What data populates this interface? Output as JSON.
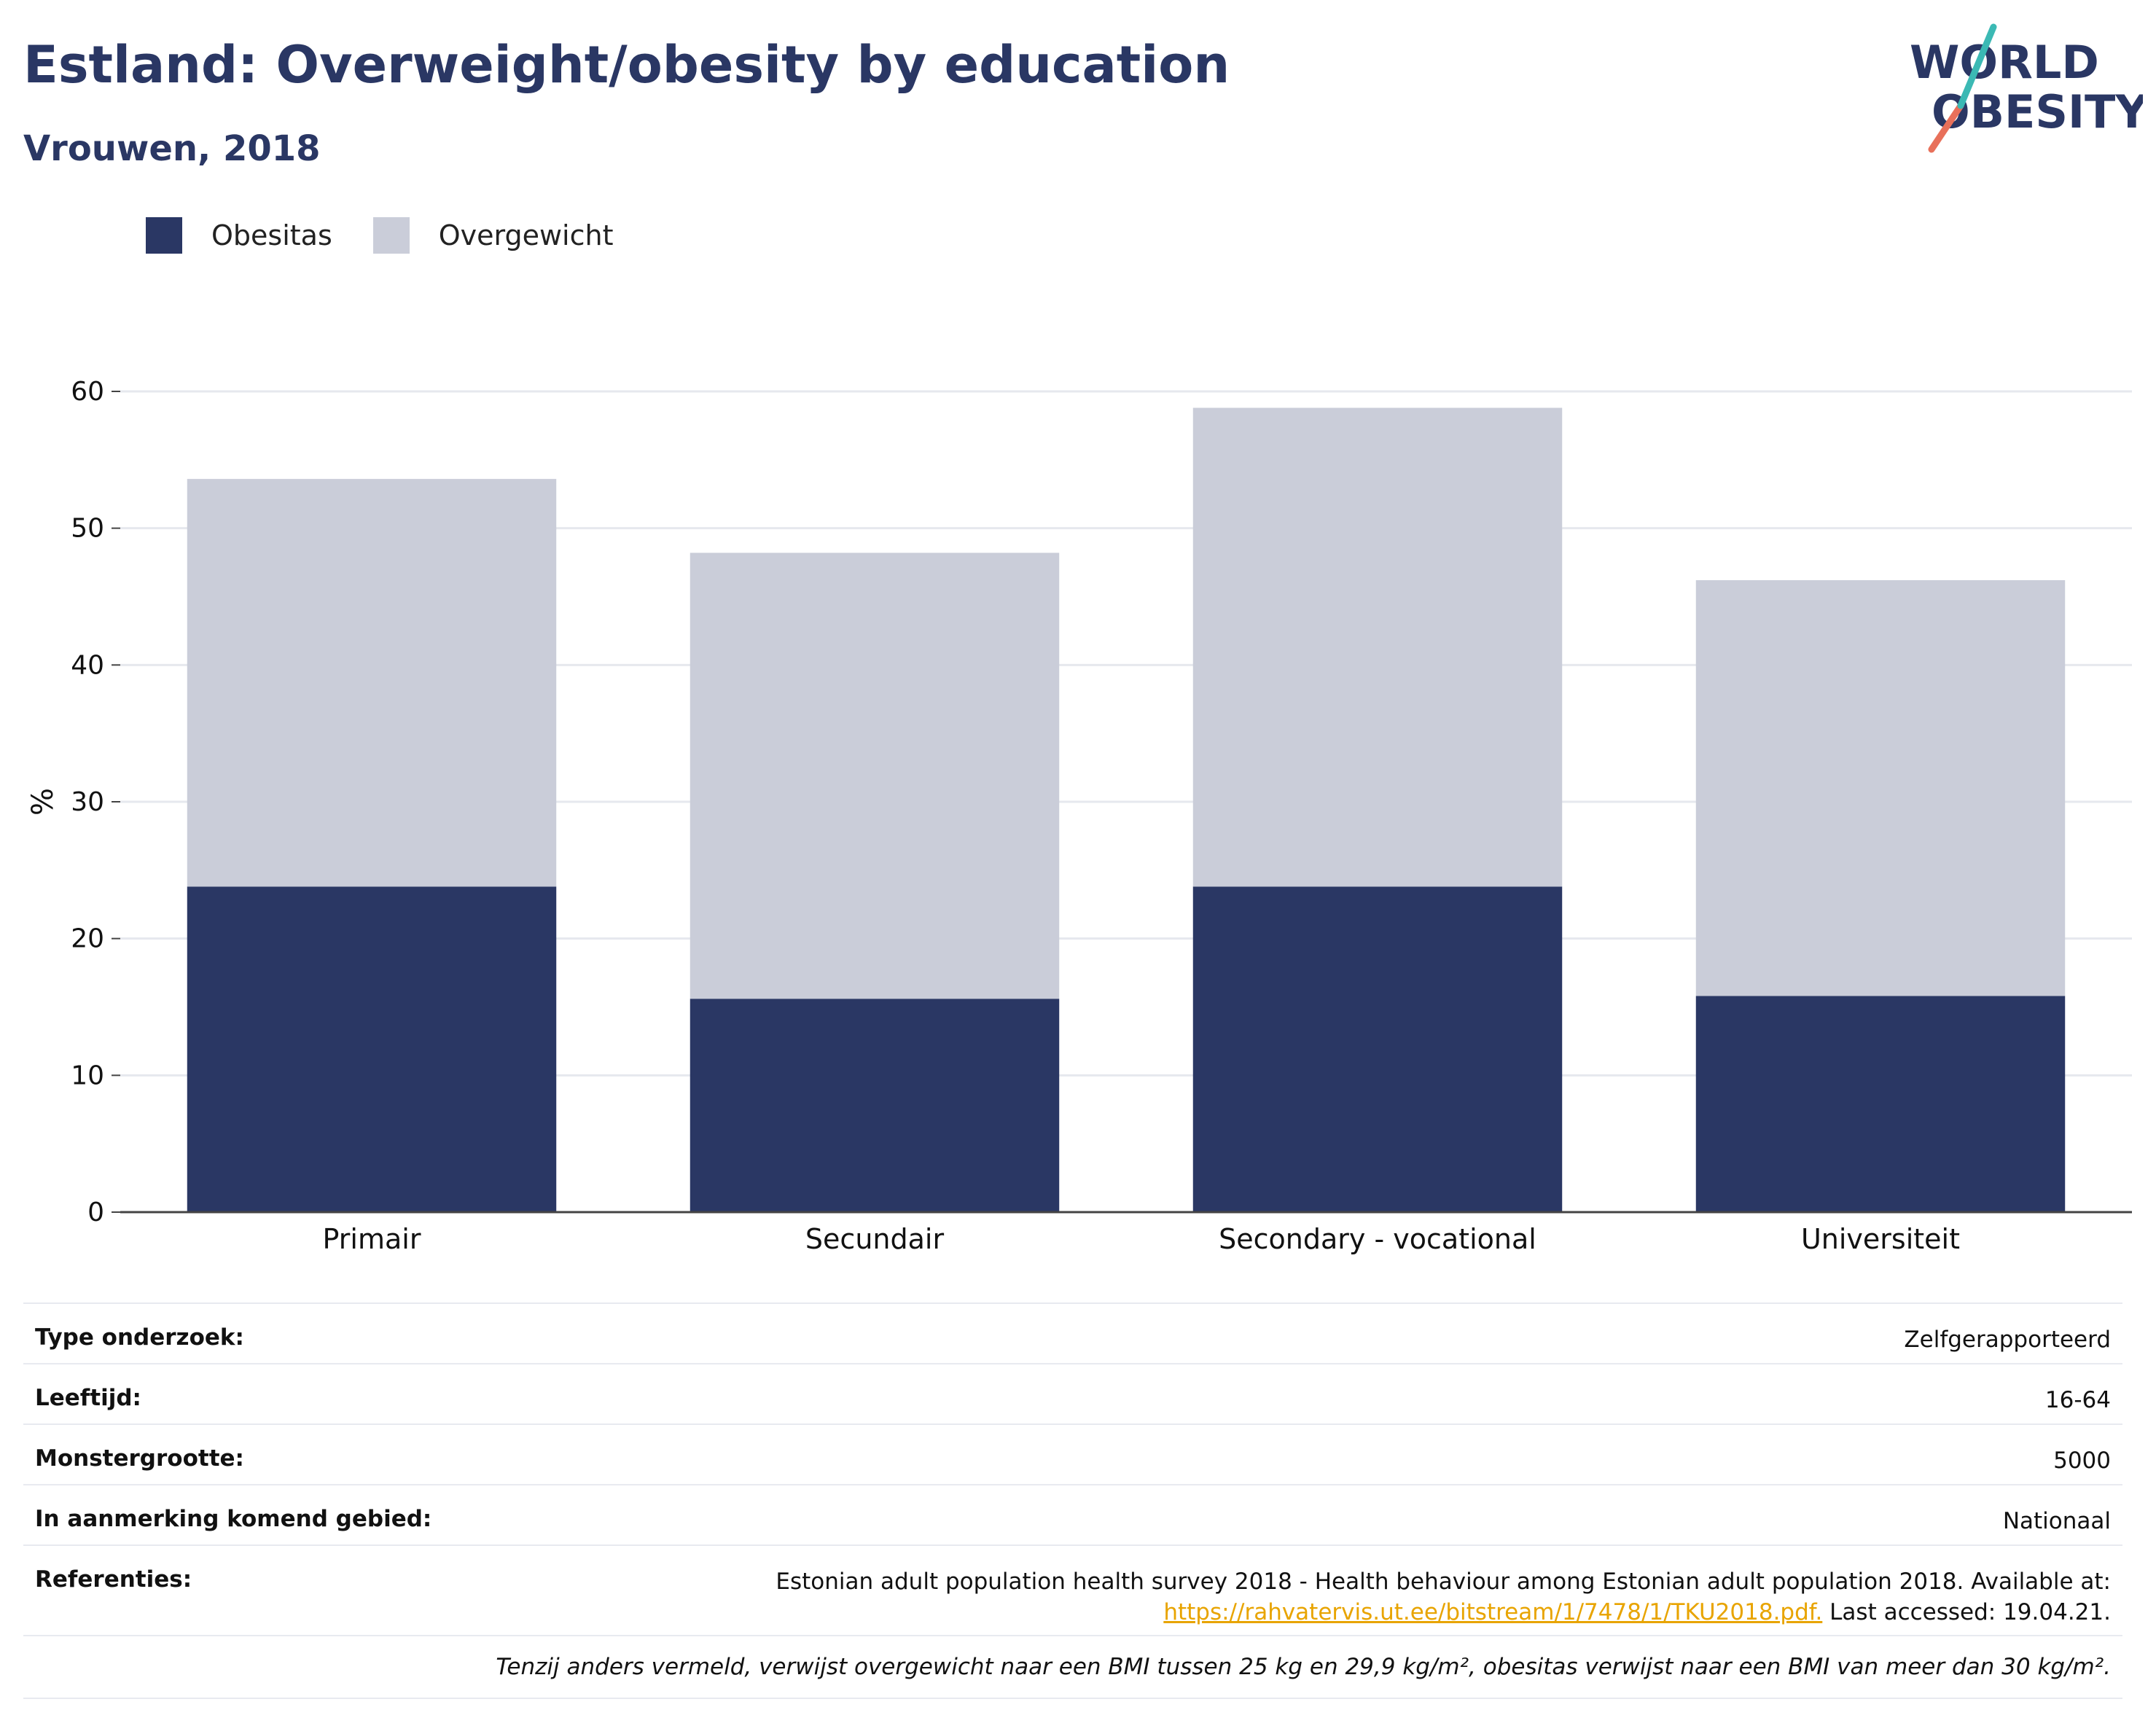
{
  "header": {
    "title": "Estland: Overweight/obesity by education",
    "subtitle": "Vrouwen, 2018"
  },
  "logo": {
    "line1": "WORLD",
    "line2": "OBESITY"
  },
  "colors": {
    "obesity": "#2a3764",
    "overweight": "#cacdd9",
    "title": "#2a3764",
    "link": "#e8a400"
  },
  "chart_data": {
    "type": "bar",
    "stacked": true,
    "categories": [
      "Primair",
      "Secundair",
      "Secondary - vocational",
      "Universiteit"
    ],
    "series": [
      {
        "name": "Obesitas",
        "values": [
          23.8,
          15.6,
          23.8,
          15.8
        ]
      },
      {
        "name": "Overgewicht",
        "values": [
          29.8,
          32.6,
          35.0,
          30.4
        ]
      }
    ],
    "totals": [
      53.6,
      48.2,
      58.8,
      46.2
    ],
    "ylabel": "%",
    "ylim": [
      0,
      60
    ],
    "yticks": [
      0,
      10,
      20,
      30,
      40,
      50,
      60
    ],
    "grid": true,
    "legend_position": "top-left"
  },
  "info": {
    "rows": [
      {
        "label": "Type onderzoek:",
        "value": "Zelfgerapporteerd"
      },
      {
        "label": "Leeftijd:",
        "value": "16-64"
      },
      {
        "label": "Monstergrootte:",
        "value": "5000"
      },
      {
        "label": "In aanmerking komend gebied:",
        "value": "Nationaal"
      }
    ],
    "references": {
      "label": "Referenties:",
      "text1": "Estonian adult population health survey 2018 - Health behaviour among Estonian adult population 2018. Available at:",
      "link": "https://rahvatervis.ut.ee/bitstream/1/7478/1/TKU2018.pdf.",
      "text2": " Last accessed: 19.04.21."
    },
    "note": "Tenzij anders vermeld, verwijst overgewicht naar een BMI tussen 25 kg en 29,9 kg/m², obesitas verwijst naar een BMI van meer dan 30 kg/m²."
  }
}
